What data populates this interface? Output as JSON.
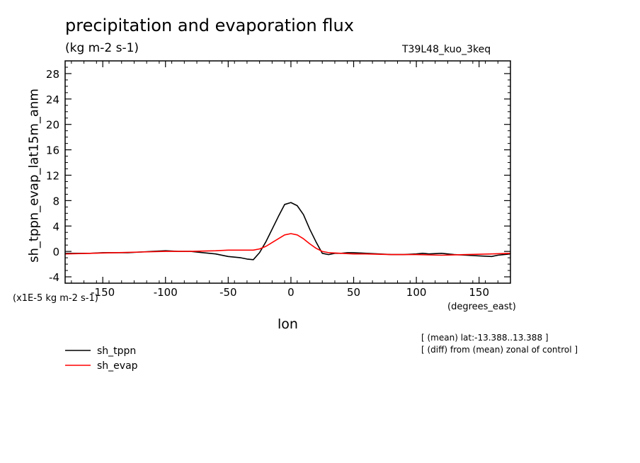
{
  "chart_data": {
    "type": "line",
    "title": "precipitation and evaporation flux",
    "subtitle": "(kg m-2 s-1)",
    "run_label": "T39L48_kuo_3keq",
    "ylabel": "sh_tppn_evap_lat15m_anm",
    "xlabel": "lon",
    "x_units": "(degrees_east)",
    "y_scale_note": "(x1E-5 kg m-2 s-1)",
    "xlim": [
      -180,
      175
    ],
    "ylim": [
      -5,
      30
    ],
    "x_ticks": [
      -150,
      -100,
      -50,
      0,
      50,
      100,
      150
    ],
    "x_tick_labels": [
      "-150",
      "-100",
      "-50",
      "0",
      "50",
      "100",
      "150"
    ],
    "y_ticks": [
      -4,
      0,
      4,
      8,
      12,
      16,
      20,
      24,
      28
    ],
    "y_tick_labels": [
      "-4",
      "0",
      "4",
      "8",
      "12",
      "16",
      "20",
      "24",
      "28"
    ],
    "notes": [
      "[ (mean) lat:-13.388..13.388 ]",
      "[ (diff) from (mean) zonal of control ]"
    ],
    "legend_position": "bottom-left",
    "series": [
      {
        "name": "sh_tppn",
        "color": "#000000",
        "x": [
          -180,
          -170,
          -160,
          -150,
          -140,
          -130,
          -120,
          -110,
          -100,
          -90,
          -80,
          -70,
          -60,
          -50,
          -40,
          -35,
          -30,
          -25,
          -20,
          -15,
          -10,
          -5,
          0,
          5,
          10,
          15,
          20,
          25,
          30,
          35,
          40,
          45,
          50,
          60,
          70,
          80,
          90,
          100,
          105,
          110,
          120,
          125,
          130,
          140,
          150,
          160,
          165,
          170,
          175
        ],
        "y": [
          -0.3,
          -0.3,
          -0.3,
          -0.2,
          -0.2,
          -0.2,
          -0.1,
          0.0,
          0.1,
          0.0,
          0.0,
          -0.2,
          -0.4,
          -0.8,
          -1.0,
          -1.2,
          -1.3,
          -0.2,
          1.5,
          3.5,
          5.5,
          7.4,
          7.7,
          7.2,
          5.8,
          3.5,
          1.5,
          -0.3,
          -0.5,
          -0.3,
          -0.3,
          -0.2,
          -0.2,
          -0.3,
          -0.4,
          -0.5,
          -0.5,
          -0.4,
          -0.3,
          -0.4,
          -0.3,
          -0.4,
          -0.5,
          -0.6,
          -0.7,
          -0.8,
          -0.6,
          -0.5,
          -0.4
        ]
      },
      {
        "name": "sh_evap",
        "color": "#ff0000",
        "x": [
          -180,
          -160,
          -140,
          -120,
          -100,
          -80,
          -60,
          -50,
          -40,
          -30,
          -25,
          -20,
          -15,
          -10,
          -5,
          0,
          5,
          10,
          15,
          20,
          25,
          30,
          40,
          50,
          60,
          80,
          100,
          120,
          140,
          160,
          175
        ],
        "y": [
          -0.4,
          -0.3,
          -0.2,
          -0.1,
          0.0,
          0.0,
          0.1,
          0.2,
          0.2,
          0.2,
          0.4,
          0.8,
          1.4,
          2.0,
          2.6,
          2.8,
          2.6,
          2.0,
          1.2,
          0.5,
          0.0,
          -0.2,
          -0.3,
          -0.4,
          -0.4,
          -0.5,
          -0.5,
          -0.6,
          -0.5,
          -0.4,
          -0.3
        ]
      }
    ]
  }
}
